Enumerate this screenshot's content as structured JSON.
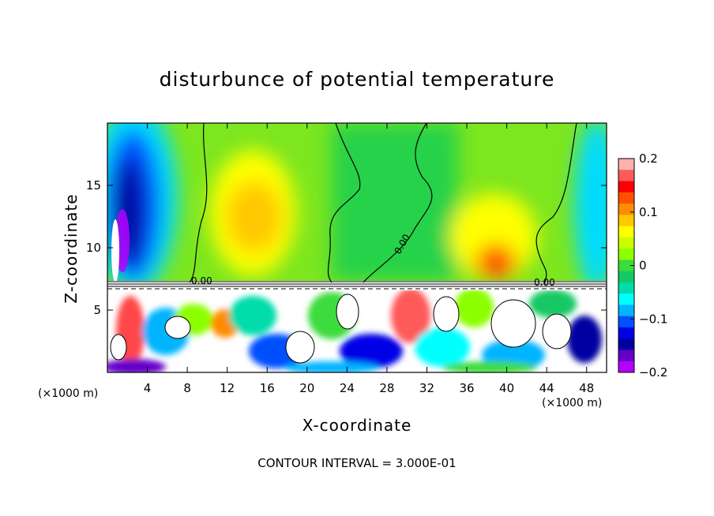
{
  "chart_data": {
    "type": "heatmap",
    "title": "disturbunce of potential temperature",
    "xlabel": "X-coordinate",
    "ylabel": "Z-coordinate",
    "x_unit": "(×1000 m)",
    "z_unit": "(×1000 m)",
    "xlim": [
      0,
      50
    ],
    "ylim": [
      0,
      20
    ],
    "x_ticks": [
      4,
      8,
      12,
      16,
      20,
      24,
      28,
      32,
      36,
      40,
      44,
      48
    ],
    "y_ticks": [
      5,
      10,
      15
    ],
    "colorbar": {
      "range": [
        -0.2,
        0.2
      ],
      "ticks": [
        "0.2",
        "0.1",
        "0",
        "−0.1",
        "−0.2"
      ],
      "tick_values": [
        0.2,
        0.1,
        0,
        -0.1,
        -0.2
      ],
      "colors": [
        "#ffb0b0",
        "#ff5a5a",
        "#ff0000",
        "#ff5000",
        "#ff8c00",
        "#ffc800",
        "#ffff00",
        "#c8ff00",
        "#8cff00",
        "#3cdc3c",
        "#14c864",
        "#00dcaa",
        "#00ffff",
        "#00b4ff",
        "#0050ff",
        "#0000e6",
        "#0000a0",
        "#6400c8",
        "#b400ff"
      ]
    },
    "contour_label": "0.00",
    "footer": "CONTOUR INTERVAL = 3.000E-01"
  }
}
